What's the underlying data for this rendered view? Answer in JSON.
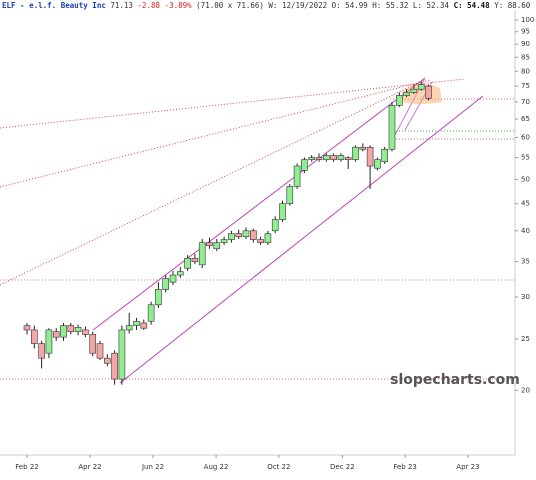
{
  "chart_data": {
    "type": "candlestick",
    "title": "ELF - e.l.f. Beauty Inc",
    "info": [
      "71.13",
      "-2.88 -3.89%",
      "(71.00 x 71.66)",
      "W: 12/19/2022 O: 54.99 H: 55.32 L: 52.34",
      "C: 54.48",
      "Y: 88.60"
    ],
    "watermark": "slopecharts.com",
    "log_scale": true,
    "up_color": "#90ee90",
    "down_color": "#f4a6a6",
    "ylim": [
      15.1,
      104.4
    ],
    "yticks": [
      20,
      25,
      30,
      35,
      40,
      45,
      50,
      55,
      60,
      65,
      70,
      75,
      80,
      85,
      90,
      95,
      100
    ],
    "xlim": [
      -3.7,
      66.85
    ],
    "xticks": [
      {
        "value": 0,
        "label": "Feb 22"
      },
      {
        "value": 8.63,
        "label": "Apr 22"
      },
      {
        "value": 17.26,
        "label": "Jun 22"
      },
      {
        "value": 25.9,
        "label": "Aug 22"
      },
      {
        "value": 34.5,
        "label": "Oct 22"
      },
      {
        "value": 43.2,
        "label": "Dec 22"
      },
      {
        "value": 51.8,
        "label": "Feb 23"
      },
      {
        "value": 60.4,
        "label": "Apr 23"
      }
    ],
    "x": [
      0,
      1,
      2,
      3,
      4,
      5,
      6,
      7,
      8,
      9,
      10,
      11,
      12,
      13,
      14,
      15,
      16,
      17,
      18,
      19,
      20,
      21,
      22,
      23,
      24,
      25,
      26,
      27,
      28,
      29,
      30,
      31,
      32,
      33,
      34,
      35,
      36,
      37,
      38,
      39,
      40,
      41,
      42,
      43,
      44,
      45,
      46,
      47,
      48,
      49,
      50,
      51,
      52,
      53,
      54,
      55
    ],
    "open": [
      26.5,
      26,
      24.5,
      23.5,
      25.8,
      25.2,
      26.5,
      25.8,
      26,
      25.5,
      24.5,
      23,
      23.5,
      21,
      26,
      26.5,
      26.8,
      27,
      29,
      31,
      32,
      33,
      34,
      35.5,
      34.5,
      38,
      37,
      38,
      38.5,
      39.5,
      39,
      40,
      38.5,
      38,
      40,
      42,
      45,
      48.5,
      52,
      54.5,
      55,
      54.5,
      55.5,
      54.5,
      54.99,
      54.5,
      57.5,
      57.5,
      52.5,
      54,
      57,
      69,
      72,
      73,
      74,
      75
    ],
    "high": [
      26.8,
      26.5,
      24.8,
      26.2,
      26.2,
      26.8,
      26.8,
      26.6,
      26.4,
      25.8,
      24.8,
      23.4,
      23.8,
      26.5,
      28,
      27.4,
      27.2,
      29.4,
      32,
      33,
      33.6,
      34.2,
      36,
      36.2,
      38.6,
      38.8,
      38.6,
      39,
      40,
      40.2,
      40.6,
      40.4,
      39,
      40,
      42.6,
      45.6,
      49,
      53.6,
      55,
      55.6,
      56,
      56,
      56,
      56,
      55.32,
      58,
      58.5,
      58,
      55,
      57.6,
      70,
      73,
      74,
      75.5,
      76.5,
      75.5
    ],
    "low": [
      25.5,
      24,
      22,
      23,
      24.8,
      24.8,
      25.5,
      25.4,
      25.2,
      23.2,
      22.8,
      22.2,
      20.5,
      20.5,
      25.6,
      26,
      26,
      26.6,
      28.6,
      30.6,
      31.6,
      32.6,
      33.6,
      34.6,
      34,
      37,
      36.6,
      37.6,
      38,
      38.6,
      38.6,
      38,
      37.6,
      37.6,
      39.6,
      41.6,
      44.6,
      48,
      51.4,
      54,
      54,
      54,
      54,
      54,
      52.34,
      54,
      56.5,
      48,
      52,
      53.5,
      56.5,
      68.5,
      71.5,
      72.5,
      73.5,
      70.5
    ],
    "close": [
      26,
      24.5,
      23,
      26,
      25.2,
      26.5,
      25.8,
      26.3,
      25.5,
      23.5,
      23,
      22.5,
      21,
      26,
      26.5,
      27,
      26.2,
      29,
      31,
      32.5,
      33,
      33.5,
      35.5,
      35,
      38,
      37.5,
      38,
      38.5,
      39.5,
      39,
      40,
      38.5,
      38,
      39.5,
      42,
      45,
      48.5,
      53,
      54.5,
      55,
      54.5,
      55.5,
      54.5,
      55.5,
      54.48,
      57.5,
      57,
      53,
      54.5,
      57,
      69,
      72,
      73,
      74,
      75.5,
      71.13
    ]
  }
}
